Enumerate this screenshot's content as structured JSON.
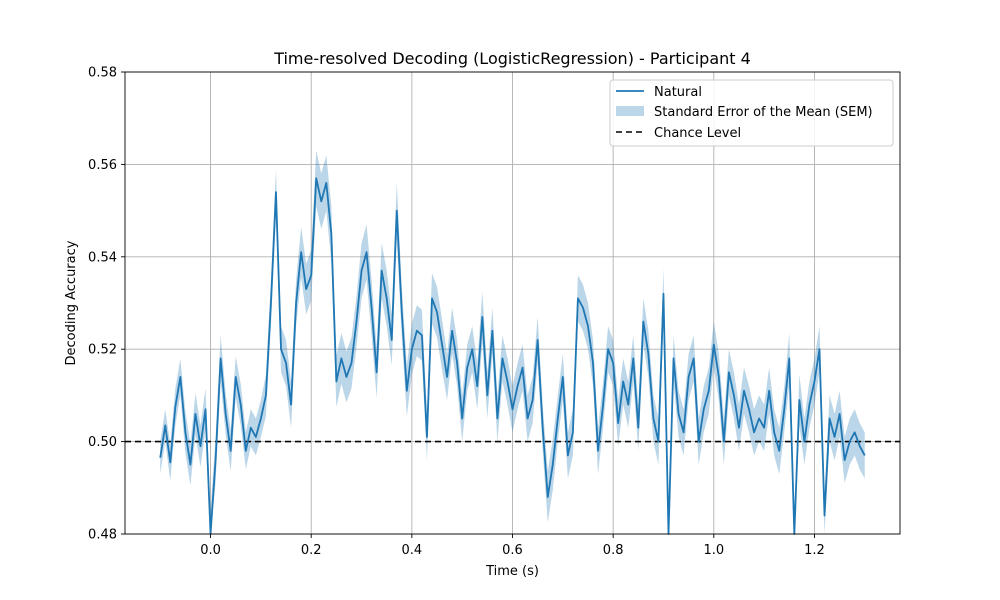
{
  "chart_data": {
    "type": "line",
    "title": "Time-resolved Decoding (LogisticRegression) - Participant 4",
    "xlabel": "Time (s)",
    "ylabel": "Decoding Accuracy",
    "xlim": [
      -0.17,
      1.37
    ],
    "ylim": [
      0.48,
      0.58
    ],
    "xticks": [
      0.0,
      0.2,
      0.4,
      0.6,
      0.8,
      1.0,
      1.2
    ],
    "xtick_labels": [
      "0.0",
      "0.2",
      "0.4",
      "0.6",
      "0.8",
      "1.0",
      "1.2"
    ],
    "yticks": [
      0.48,
      0.5,
      0.52,
      0.54,
      0.56,
      0.58
    ],
    "ytick_labels": [
      "0.48",
      "0.50",
      "0.52",
      "0.54",
      "0.56",
      "0.58"
    ],
    "grid": true,
    "legend_position": "top-right",
    "legend": [
      "Natural",
      "Standard Error of the Mean (SEM)",
      "Chance Level"
    ],
    "colors": {
      "line": "#1f77b4",
      "band": "#1f77b4",
      "chance": "#000000"
    },
    "chance_level": 0.5,
    "x": [
      -0.1,
      -0.09,
      -0.08,
      -0.07,
      -0.06,
      -0.05,
      -0.04,
      -0.03,
      -0.02,
      -0.01,
      0.0,
      0.01,
      0.02,
      0.03,
      0.04,
      0.05,
      0.06,
      0.07,
      0.08,
      0.09,
      0.1,
      0.11,
      0.12,
      0.13,
      0.14,
      0.15,
      0.16,
      0.17,
      0.18,
      0.19,
      0.2,
      0.21,
      0.22,
      0.23,
      0.24,
      0.25,
      0.26,
      0.27,
      0.28,
      0.29,
      0.3,
      0.31,
      0.32,
      0.33,
      0.34,
      0.35,
      0.36,
      0.37,
      0.38,
      0.39,
      0.4,
      0.41,
      0.42,
      0.43,
      0.44,
      0.45,
      0.46,
      0.47,
      0.48,
      0.49,
      0.5,
      0.51,
      0.52,
      0.53,
      0.54,
      0.55,
      0.56,
      0.57,
      0.58,
      0.59,
      0.6,
      0.61,
      0.62,
      0.63,
      0.64,
      0.65,
      0.66,
      0.67,
      0.68,
      0.69,
      0.7,
      0.71,
      0.72,
      0.73,
      0.74,
      0.75,
      0.76,
      0.77,
      0.78,
      0.79,
      0.8,
      0.81,
      0.82,
      0.83,
      0.84,
      0.85,
      0.86,
      0.87,
      0.88,
      0.89,
      0.9,
      0.91,
      0.92,
      0.93,
      0.94,
      0.95,
      0.96,
      0.97,
      0.98,
      0.99,
      1.0,
      1.01,
      1.02,
      1.03,
      1.04,
      1.05,
      1.06,
      1.07,
      1.08,
      1.09,
      1.1,
      1.11,
      1.12,
      1.13,
      1.14,
      1.15,
      1.16,
      1.17,
      1.18,
      1.19,
      1.2,
      1.21,
      1.22,
      1.23,
      1.24,
      1.25,
      1.26,
      1.27,
      1.28,
      1.29,
      1.3
    ],
    "series": [
      {
        "name": "Natural",
        "values": [
          0.4965,
          0.5035,
          0.4955,
          0.5075,
          0.514,
          0.502,
          0.495,
          0.506,
          0.499,
          0.507,
          0.48,
          0.496,
          0.518,
          0.506,
          0.498,
          0.514,
          0.508,
          0.498,
          0.503,
          0.501,
          0.505,
          0.51,
          0.53,
          0.554,
          0.52,
          0.517,
          0.508,
          0.53,
          0.541,
          0.533,
          0.536,
          0.557,
          0.552,
          0.556,
          0.545,
          0.513,
          0.518,
          0.514,
          0.517,
          0.526,
          0.537,
          0.541,
          0.529,
          0.515,
          0.537,
          0.531,
          0.522,
          0.55,
          0.528,
          0.511,
          0.52,
          0.524,
          0.523,
          0.501,
          0.531,
          0.528,
          0.521,
          0.514,
          0.524,
          0.517,
          0.505,
          0.516,
          0.52,
          0.512,
          0.527,
          0.51,
          0.524,
          0.505,
          0.518,
          0.513,
          0.507,
          0.512,
          0.516,
          0.505,
          0.509,
          0.522,
          0.503,
          0.488,
          0.495,
          0.505,
          0.514,
          0.497,
          0.502,
          0.531,
          0.529,
          0.525,
          0.517,
          0.498,
          0.508,
          0.52,
          0.517,
          0.504,
          0.513,
          0.508,
          0.518,
          0.503,
          0.526,
          0.519,
          0.505,
          0.5,
          0.532,
          0.479,
          0.518,
          0.506,
          0.502,
          0.514,
          0.518,
          0.5,
          0.507,
          0.511,
          0.521,
          0.514,
          0.5,
          0.515,
          0.51,
          0.503,
          0.511,
          0.507,
          0.502,
          0.505,
          0.503,
          0.511,
          0.502,
          0.498,
          0.507,
          0.518,
          0.479,
          0.509,
          0.5,
          0.508,
          0.513,
          0.52,
          0.484,
          0.505,
          0.501,
          0.506,
          0.496,
          0.5,
          0.502,
          0.499,
          0.497
        ]
      }
    ],
    "sem": [
      0.0035,
      0.0035,
      0.004,
      0.004,
      0.004,
      0.0045,
      0.0045,
      0.0045,
      0.0045,
      0.0045,
      0.005,
      0.005,
      0.005,
      0.0045,
      0.0045,
      0.0045,
      0.0045,
      0.004,
      0.004,
      0.004,
      0.004,
      0.0045,
      0.005,
      0.005,
      0.005,
      0.005,
      0.005,
      0.005,
      0.0055,
      0.0055,
      0.0055,
      0.006,
      0.006,
      0.006,
      0.006,
      0.0055,
      0.0055,
      0.0055,
      0.0055,
      0.0055,
      0.006,
      0.006,
      0.006,
      0.0055,
      0.006,
      0.006,
      0.0055,
      0.006,
      0.0055,
      0.0055,
      0.0055,
      0.0055,
      0.0055,
      0.005,
      0.0055,
      0.0055,
      0.0055,
      0.005,
      0.005,
      0.005,
      0.005,
      0.005,
      0.005,
      0.005,
      0.0055,
      0.005,
      0.005,
      0.005,
      0.005,
      0.005,
      0.005,
      0.005,
      0.005,
      0.005,
      0.005,
      0.005,
      0.005,
      0.0055,
      0.0055,
      0.005,
      0.005,
      0.005,
      0.005,
      0.005,
      0.005,
      0.005,
      0.005,
      0.005,
      0.005,
      0.005,
      0.005,
      0.005,
      0.005,
      0.005,
      0.005,
      0.005,
      0.005,
      0.005,
      0.005,
      0.005,
      0.0055,
      0.0055,
      0.005,
      0.005,
      0.005,
      0.005,
      0.005,
      0.005,
      0.005,
      0.005,
      0.005,
      0.005,
      0.005,
      0.005,
      0.005,
      0.005,
      0.005,
      0.005,
      0.005,
      0.005,
      0.005,
      0.005,
      0.005,
      0.005,
      0.005,
      0.0055,
      0.0055,
      0.0055,
      0.005,
      0.005,
      0.005,
      0.005,
      0.005,
      0.005,
      0.005,
      0.005,
      0.005,
      0.005,
      0.005,
      0.005,
      0.005
    ]
  }
}
